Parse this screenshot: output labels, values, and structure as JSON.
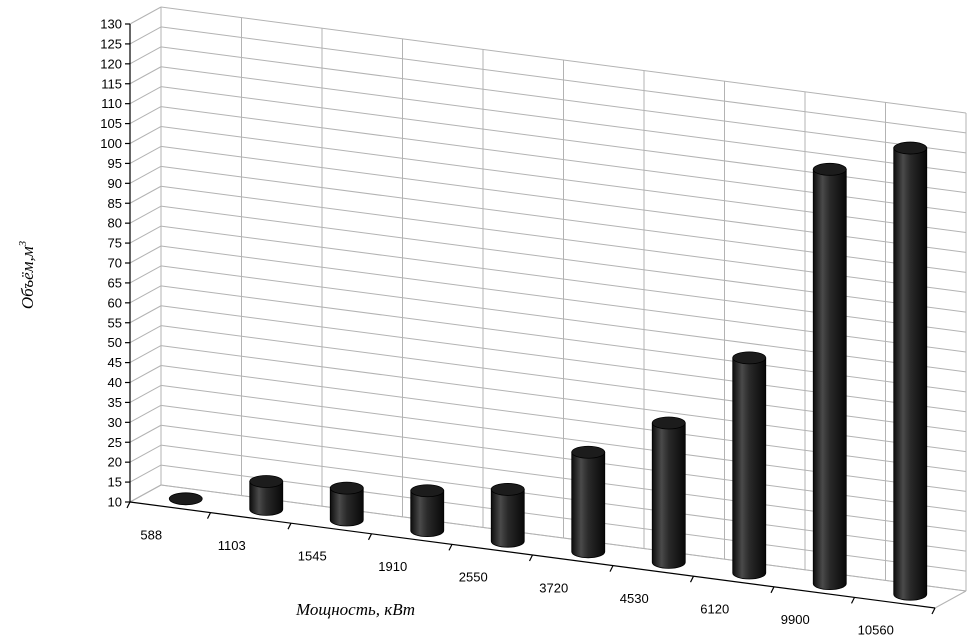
{
  "chart_data": {
    "type": "bar",
    "style": "3d-cylinder",
    "categories": [
      "588",
      "1103",
      "1545",
      "1910",
      "2550",
      "3720",
      "4530",
      "6120",
      "9900",
      "10560"
    ],
    "series": [
      {
        "values": [
          10,
          17,
          18,
          20,
          23,
          35,
          45,
          64,
          114,
          122
        ]
      }
    ],
    "xlabel": "Мощность, кВт",
    "ylabel": "Объём,м",
    "ylabel_superscript": "3",
    "yticks": [
      10,
      15,
      20,
      25,
      30,
      35,
      40,
      45,
      50,
      55,
      60,
      65,
      70,
      75,
      80,
      85,
      90,
      95,
      100,
      105,
      110,
      115,
      120,
      125,
      130
    ],
    "ylim": [
      10,
      130
    ],
    "grid": true,
    "legend": "none",
    "colors": {
      "bar": "#2b2b2b",
      "grid": "#b3b3b3"
    }
  }
}
